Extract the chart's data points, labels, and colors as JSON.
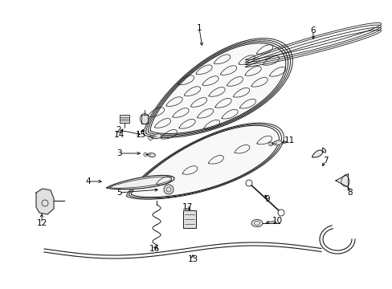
{
  "bg_color": "#ffffff",
  "line_color": "#1a1a1a",
  "fig_width": 4.89,
  "fig_height": 3.6,
  "dpi": 100,
  "label_fontsize": 7.5
}
